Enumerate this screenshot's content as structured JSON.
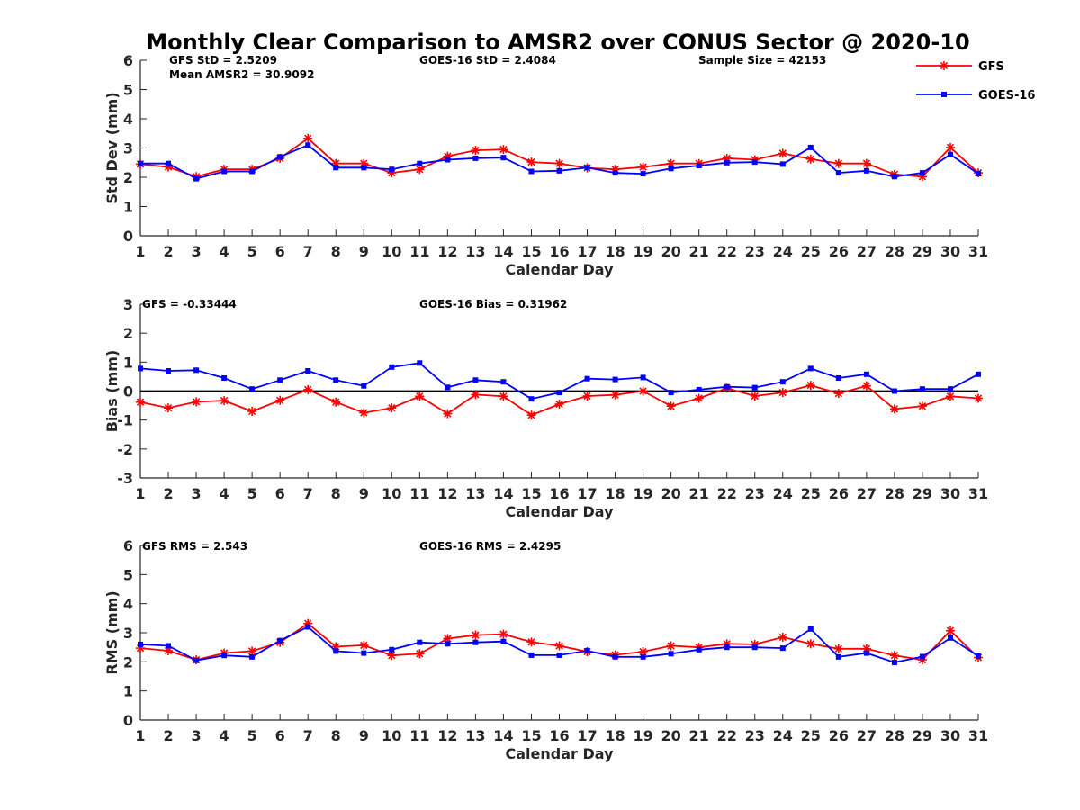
{
  "title": "Monthly Clear Comparison to AMSR2 over CONUS Sector @ 2020-10",
  "colors": {
    "gfs": "#ff0000",
    "goes": "#0000ff",
    "axis": "#262626",
    "zero_line": "#000000"
  },
  "legend": {
    "position": "top-right",
    "gfs": {
      "label": "GFS",
      "marker": "asterisk"
    },
    "goes": {
      "label": "GOES-16",
      "marker": "square"
    }
  },
  "panels": [
    {
      "stats": {
        "left": "GFS StD = 2.5209",
        "left2": "Mean AMSR2 = 30.9092",
        "middle": "GOES-16 StD = 2.4084",
        "right": "Sample Size = 42153"
      }
    },
    {
      "stats": {
        "left": "GFS = -0.33444",
        "middle": "GOES-16 Bias = 0.31962"
      }
    },
    {
      "stats": {
        "left": "GFS RMS = 2.543",
        "middle": "GOES-16 RMS = 2.4295"
      }
    }
  ],
  "chart_data": [
    {
      "type": "line",
      "xlabel": "Calendar Day",
      "ylabel": "Std Dev (mm)",
      "xlim": [
        1,
        31
      ],
      "ylim": [
        0,
        6
      ],
      "xticks": [
        1,
        2,
        3,
        4,
        5,
        6,
        7,
        8,
        9,
        10,
        11,
        12,
        13,
        14,
        15,
        16,
        17,
        18,
        19,
        20,
        21,
        22,
        23,
        24,
        25,
        26,
        27,
        28,
        29,
        30,
        31
      ],
      "yticks": [
        0,
        1,
        2,
        3,
        4,
        5,
        6
      ],
      "x": [
        1,
        2,
        3,
        4,
        5,
        6,
        7,
        8,
        9,
        10,
        11,
        12,
        13,
        14,
        15,
        16,
        17,
        18,
        19,
        20,
        21,
        22,
        23,
        24,
        25,
        26,
        27,
        28,
        29,
        30,
        31
      ],
      "series": [
        {
          "name": "GFS",
          "values": [
            2.45,
            2.35,
            2.02,
            2.27,
            2.27,
            2.65,
            3.33,
            2.47,
            2.47,
            2.15,
            2.27,
            2.72,
            2.92,
            2.95,
            2.52,
            2.47,
            2.32,
            2.27,
            2.35,
            2.47,
            2.47,
            2.65,
            2.6,
            2.82,
            2.62,
            2.47,
            2.47,
            2.1,
            2.02,
            3.02,
            2.15
          ]
        },
        {
          "name": "GOES-16",
          "values": [
            2.47,
            2.47,
            1.95,
            2.2,
            2.2,
            2.7,
            3.1,
            2.33,
            2.33,
            2.27,
            2.47,
            2.6,
            2.65,
            2.67,
            2.2,
            2.22,
            2.33,
            2.15,
            2.12,
            2.3,
            2.4,
            2.5,
            2.52,
            2.45,
            3.02,
            2.15,
            2.22,
            2.02,
            2.15,
            2.78,
            2.12
          ]
        }
      ]
    },
    {
      "type": "line",
      "xlabel": "Calendar Day",
      "ylabel": "Bias (mm)",
      "xlim": [
        1,
        31
      ],
      "ylim": [
        -3,
        3
      ],
      "xticks": [
        1,
        2,
        3,
        4,
        5,
        6,
        7,
        8,
        9,
        10,
        11,
        12,
        13,
        14,
        15,
        16,
        17,
        18,
        19,
        20,
        21,
        22,
        23,
        24,
        25,
        26,
        27,
        28,
        29,
        30,
        31
      ],
      "yticks": [
        -3,
        -2,
        -1,
        0,
        1,
        2,
        3
      ],
      "zero_line": true,
      "x": [
        1,
        2,
        3,
        4,
        5,
        6,
        7,
        8,
        9,
        10,
        11,
        12,
        13,
        14,
        15,
        16,
        17,
        18,
        19,
        20,
        21,
        22,
        23,
        24,
        25,
        26,
        27,
        28,
        29,
        30,
        31
      ],
      "series": [
        {
          "name": "GFS",
          "values": [
            -0.38,
            -0.58,
            -0.37,
            -0.33,
            -0.7,
            -0.32,
            0.05,
            -0.38,
            -0.75,
            -0.58,
            -0.18,
            -0.78,
            -0.12,
            -0.18,
            -0.83,
            -0.45,
            -0.17,
            -0.13,
            0.0,
            -0.52,
            -0.25,
            0.1,
            -0.17,
            -0.05,
            0.2,
            -0.08,
            0.18,
            -0.62,
            -0.52,
            -0.18,
            -0.25
          ]
        },
        {
          "name": "GOES-16",
          "values": [
            0.78,
            0.7,
            0.72,
            0.45,
            0.07,
            0.38,
            0.7,
            0.38,
            0.18,
            0.83,
            0.97,
            0.13,
            0.38,
            0.32,
            -0.27,
            -0.05,
            0.43,
            0.4,
            0.47,
            -0.05,
            0.05,
            0.15,
            0.12,
            0.32,
            0.78,
            0.45,
            0.58,
            0.0,
            0.07,
            0.07,
            0.58
          ]
        }
      ]
    },
    {
      "type": "line",
      "xlabel": "Calendar Day",
      "ylabel": "RMS (mm)",
      "xlim": [
        1,
        31
      ],
      "ylim": [
        0,
        6
      ],
      "xticks": [
        1,
        2,
        3,
        4,
        5,
        6,
        7,
        8,
        9,
        10,
        11,
        12,
        13,
        14,
        15,
        16,
        17,
        18,
        19,
        20,
        21,
        22,
        23,
        24,
        25,
        26,
        27,
        28,
        29,
        30,
        31
      ],
      "yticks": [
        0,
        1,
        2,
        3,
        4,
        5,
        6
      ],
      "x": [
        1,
        2,
        3,
        4,
        5,
        6,
        7,
        8,
        9,
        10,
        11,
        12,
        13,
        14,
        15,
        16,
        17,
        18,
        19,
        20,
        21,
        22,
        23,
        24,
        25,
        26,
        27,
        28,
        29,
        30,
        31
      ],
      "series": [
        {
          "name": "GFS",
          "values": [
            2.47,
            2.38,
            2.07,
            2.3,
            2.37,
            2.67,
            3.32,
            2.52,
            2.57,
            2.22,
            2.28,
            2.8,
            2.92,
            2.95,
            2.68,
            2.55,
            2.35,
            2.24,
            2.35,
            2.55,
            2.5,
            2.62,
            2.6,
            2.85,
            2.62,
            2.45,
            2.45,
            2.22,
            2.07,
            3.07,
            2.15
          ]
        },
        {
          "name": "GOES-16",
          "values": [
            2.6,
            2.55,
            2.05,
            2.22,
            2.17,
            2.73,
            3.2,
            2.37,
            2.3,
            2.42,
            2.67,
            2.62,
            2.67,
            2.7,
            2.23,
            2.23,
            2.38,
            2.17,
            2.17,
            2.28,
            2.42,
            2.5,
            2.5,
            2.47,
            3.13,
            2.17,
            2.3,
            1.98,
            2.18,
            2.82,
            2.2
          ]
        }
      ]
    }
  ]
}
